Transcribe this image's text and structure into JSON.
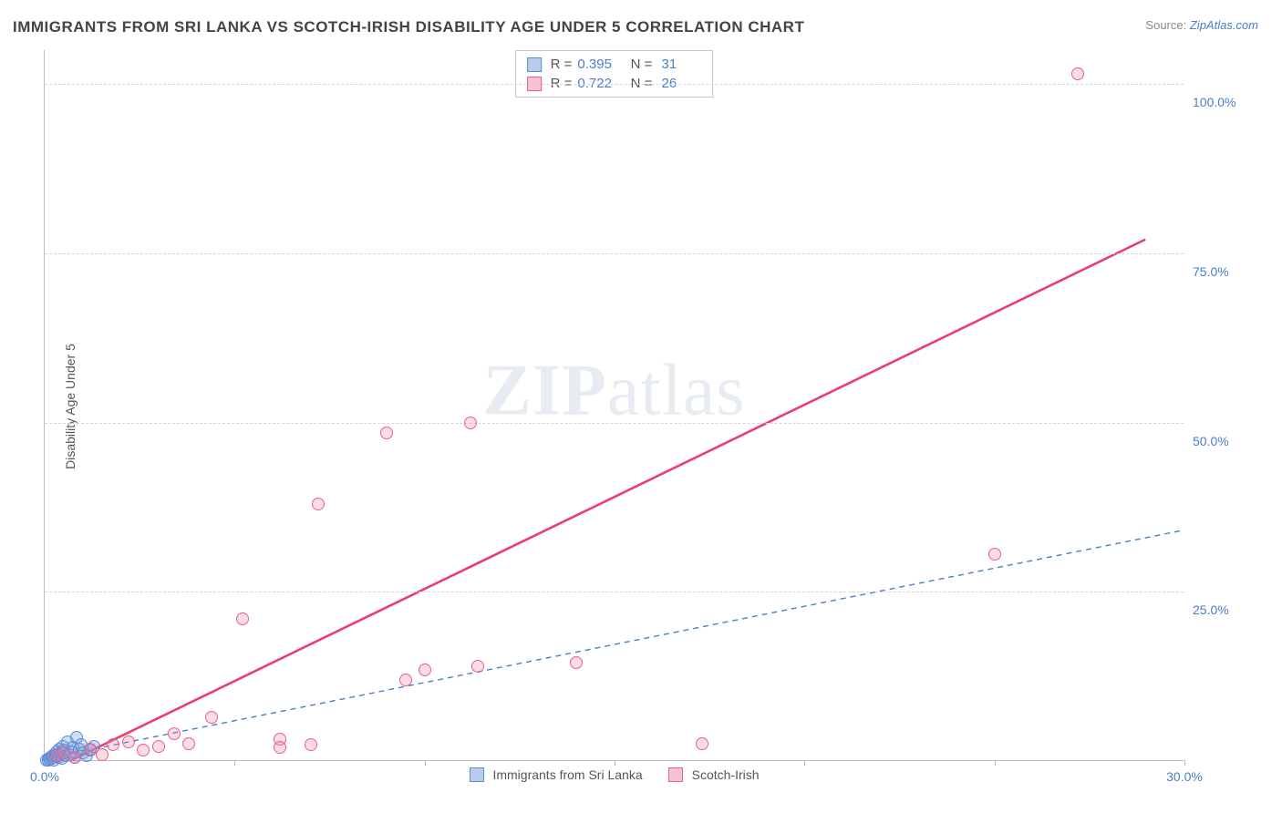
{
  "title": "IMMIGRANTS FROM SRI LANKA VS SCOTCH-IRISH DISABILITY AGE UNDER 5 CORRELATION CHART",
  "source_label": "Source:",
  "source_name": "ZipAtlas.com",
  "y_axis_title": "Disability Age Under 5",
  "watermark_a": "ZIP",
  "watermark_b": "atlas",
  "chart": {
    "type": "scatter",
    "xlim": [
      0,
      30
    ],
    "ylim": [
      0,
      105
    ],
    "x_ticks": [
      0,
      5,
      10,
      15,
      20,
      25,
      30
    ],
    "x_tick_labels": [
      "0.0%",
      "",
      "",
      "",
      "",
      "",
      "30.0%"
    ],
    "y_gridlines": [
      25,
      50,
      75,
      100
    ],
    "y_tick_labels": [
      "25.0%",
      "50.0%",
      "75.0%",
      "100.0%"
    ],
    "series": [
      {
        "name": "Immigrants from Sri Lanka",
        "color_fill": "rgba(120,160,220,0.35)",
        "color_stroke": "#5a8cd6",
        "swatch_fill": "#b7cdea",
        "swatch_border": "#5a8cd6",
        "R": "0.395",
        "N": "31",
        "trend": {
          "x1": 0,
          "y1": 0.2,
          "x2": 30,
          "y2": 34,
          "dash": "6,5",
          "width": 1.4,
          "color": "#4a7ec9"
        },
        "points": [
          [
            0.05,
            0.1
          ],
          [
            0.1,
            0.2
          ],
          [
            0.12,
            0.4
          ],
          [
            0.15,
            0.3
          ],
          [
            0.18,
            0.6
          ],
          [
            0.2,
            0.5
          ],
          [
            0.22,
            0.8
          ],
          [
            0.25,
            0.2
          ],
          [
            0.28,
            1.0
          ],
          [
            0.3,
            0.7
          ],
          [
            0.32,
            1.4
          ],
          [
            0.35,
            0.6
          ],
          [
            0.38,
            1.8
          ],
          [
            0.4,
            0.9
          ],
          [
            0.42,
            1.2
          ],
          [
            0.45,
            0.4
          ],
          [
            0.48,
            2.2
          ],
          [
            0.5,
            1.6
          ],
          [
            0.55,
            0.8
          ],
          [
            0.6,
            2.8
          ],
          [
            0.65,
            1.0
          ],
          [
            0.7,
            1.4
          ],
          [
            0.75,
            2.0
          ],
          [
            0.8,
            0.6
          ],
          [
            0.85,
            3.5
          ],
          [
            0.9,
            1.8
          ],
          [
            0.95,
            2.4
          ],
          [
            1.0,
            1.2
          ],
          [
            1.1,
            0.8
          ],
          [
            1.2,
            1.6
          ],
          [
            1.3,
            2.2
          ]
        ]
      },
      {
        "name": "Scotch-Irish",
        "color_fill": "rgba(240,130,160,0.28)",
        "color_stroke": "#e95f8a",
        "swatch_fill": "#f6c3d2",
        "swatch_border": "#e95f8a",
        "R": "0.722",
        "N": "26",
        "trend": {
          "x1": 0.7,
          "y1": 0,
          "x2": 29,
          "y2": 77,
          "dash": "",
          "width": 2.6,
          "color": "#eb3e6e"
        },
        "points": [
          [
            0.3,
            0.8
          ],
          [
            0.5,
            1.2
          ],
          [
            0.8,
            0.6
          ],
          [
            1.2,
            1.8
          ],
          [
            1.5,
            1.0
          ],
          [
            1.8,
            2.4
          ],
          [
            2.2,
            2.8
          ],
          [
            2.6,
            1.6
          ],
          [
            3.0,
            2.2
          ],
          [
            3.4,
            4.0
          ],
          [
            3.8,
            2.6
          ],
          [
            4.4,
            6.5
          ],
          [
            5.2,
            21.0
          ],
          [
            6.2,
            3.2
          ],
          [
            6.2,
            2.0
          ],
          [
            7.0,
            2.4
          ],
          [
            7.2,
            38.0
          ],
          [
            9.0,
            48.5
          ],
          [
            9.5,
            12.0
          ],
          [
            10.0,
            13.5
          ],
          [
            11.2,
            50.0
          ],
          [
            11.4,
            14.0
          ],
          [
            14.0,
            14.5
          ],
          [
            17.3,
            2.5
          ],
          [
            25.0,
            30.5
          ],
          [
            27.2,
            101.5
          ]
        ]
      }
    ]
  },
  "legend_items": [
    {
      "label": "Immigrants from Sri Lanka",
      "fill": "#b7cdea",
      "border": "#5a8cd6"
    },
    {
      "label": "Scotch-Irish",
      "fill": "#f6c3d2",
      "border": "#e95f8a"
    }
  ]
}
